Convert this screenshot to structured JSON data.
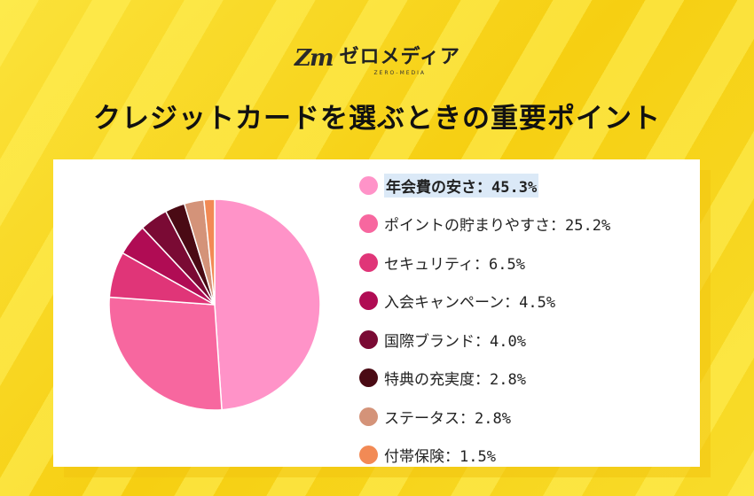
{
  "brand": {
    "mark": "Zm",
    "name": "ゼロメディア",
    "sub": "ZERO-MEDIA"
  },
  "title": "クレジットカードを選ぶときの重要ポイント",
  "chart_data": {
    "type": "pie",
    "title": "クレジットカードを選ぶときの重要ポイント",
    "legend_position": "right",
    "slices": [
      {
        "label": "年会費の安さ",
        "value": 45.3,
        "display": "45.3%",
        "color": "#ff93c8"
      },
      {
        "label": "ポイントの貯まりやすさ",
        "value": 25.2,
        "display": "25.2%",
        "color": "#f7679f"
      },
      {
        "label": "セキュリティ",
        "value": 6.5,
        "display": "6.5%",
        "color": "#e03578"
      },
      {
        "label": "入会キャンペーン",
        "value": 4.5,
        "display": "4.5%",
        "color": "#b00c54"
      },
      {
        "label": "国際ブランド",
        "value": 4.0,
        "display": "4.0%",
        "color": "#7a0a34"
      },
      {
        "label": "特典の充実度",
        "value": 2.8,
        "display": "2.8%",
        "color": "#4a0a14"
      },
      {
        "label": "ステータス",
        "value": 2.8,
        "display": "2.8%",
        "color": "#d49379"
      },
      {
        "label": "付帯保険",
        "value": 1.5,
        "display": "1.5%",
        "color": "#f28a55"
      }
    ]
  }
}
